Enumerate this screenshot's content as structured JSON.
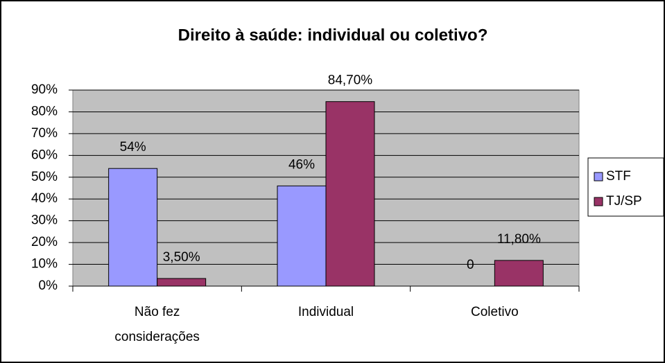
{
  "chart_data": {
    "type": "bar",
    "title": "Direito à saúde: individual ou coletivo?",
    "categories": [
      "Não fez considerações",
      "Individual",
      "Coletivo"
    ],
    "series": [
      {
        "name": "STF",
        "color": "#9999ff",
        "values": [
          54,
          46,
          0
        ],
        "value_labels": [
          "54%",
          "46%",
          "0"
        ]
      },
      {
        "name": "TJ/SP",
        "color": "#993366",
        "values": [
          3.5,
          84.7,
          11.8
        ],
        "value_labels": [
          "3,50%",
          "84,70%",
          "11,80%"
        ]
      }
    ],
    "ylim": [
      0,
      90
    ],
    "yticks": [
      {
        "value": 0,
        "label": "0%"
      },
      {
        "value": 10,
        "label": "10%"
      },
      {
        "value": 20,
        "label": "20%"
      },
      {
        "value": 30,
        "label": "30%"
      },
      {
        "value": 40,
        "label": "40%"
      },
      {
        "value": 50,
        "label": "50%"
      },
      {
        "value": 60,
        "label": "60%"
      },
      {
        "value": 70,
        "label": "70%"
      },
      {
        "value": 80,
        "label": "80%"
      },
      {
        "value": 90,
        "label": "90%"
      }
    ],
    "grid": true,
    "legend": "right"
  }
}
